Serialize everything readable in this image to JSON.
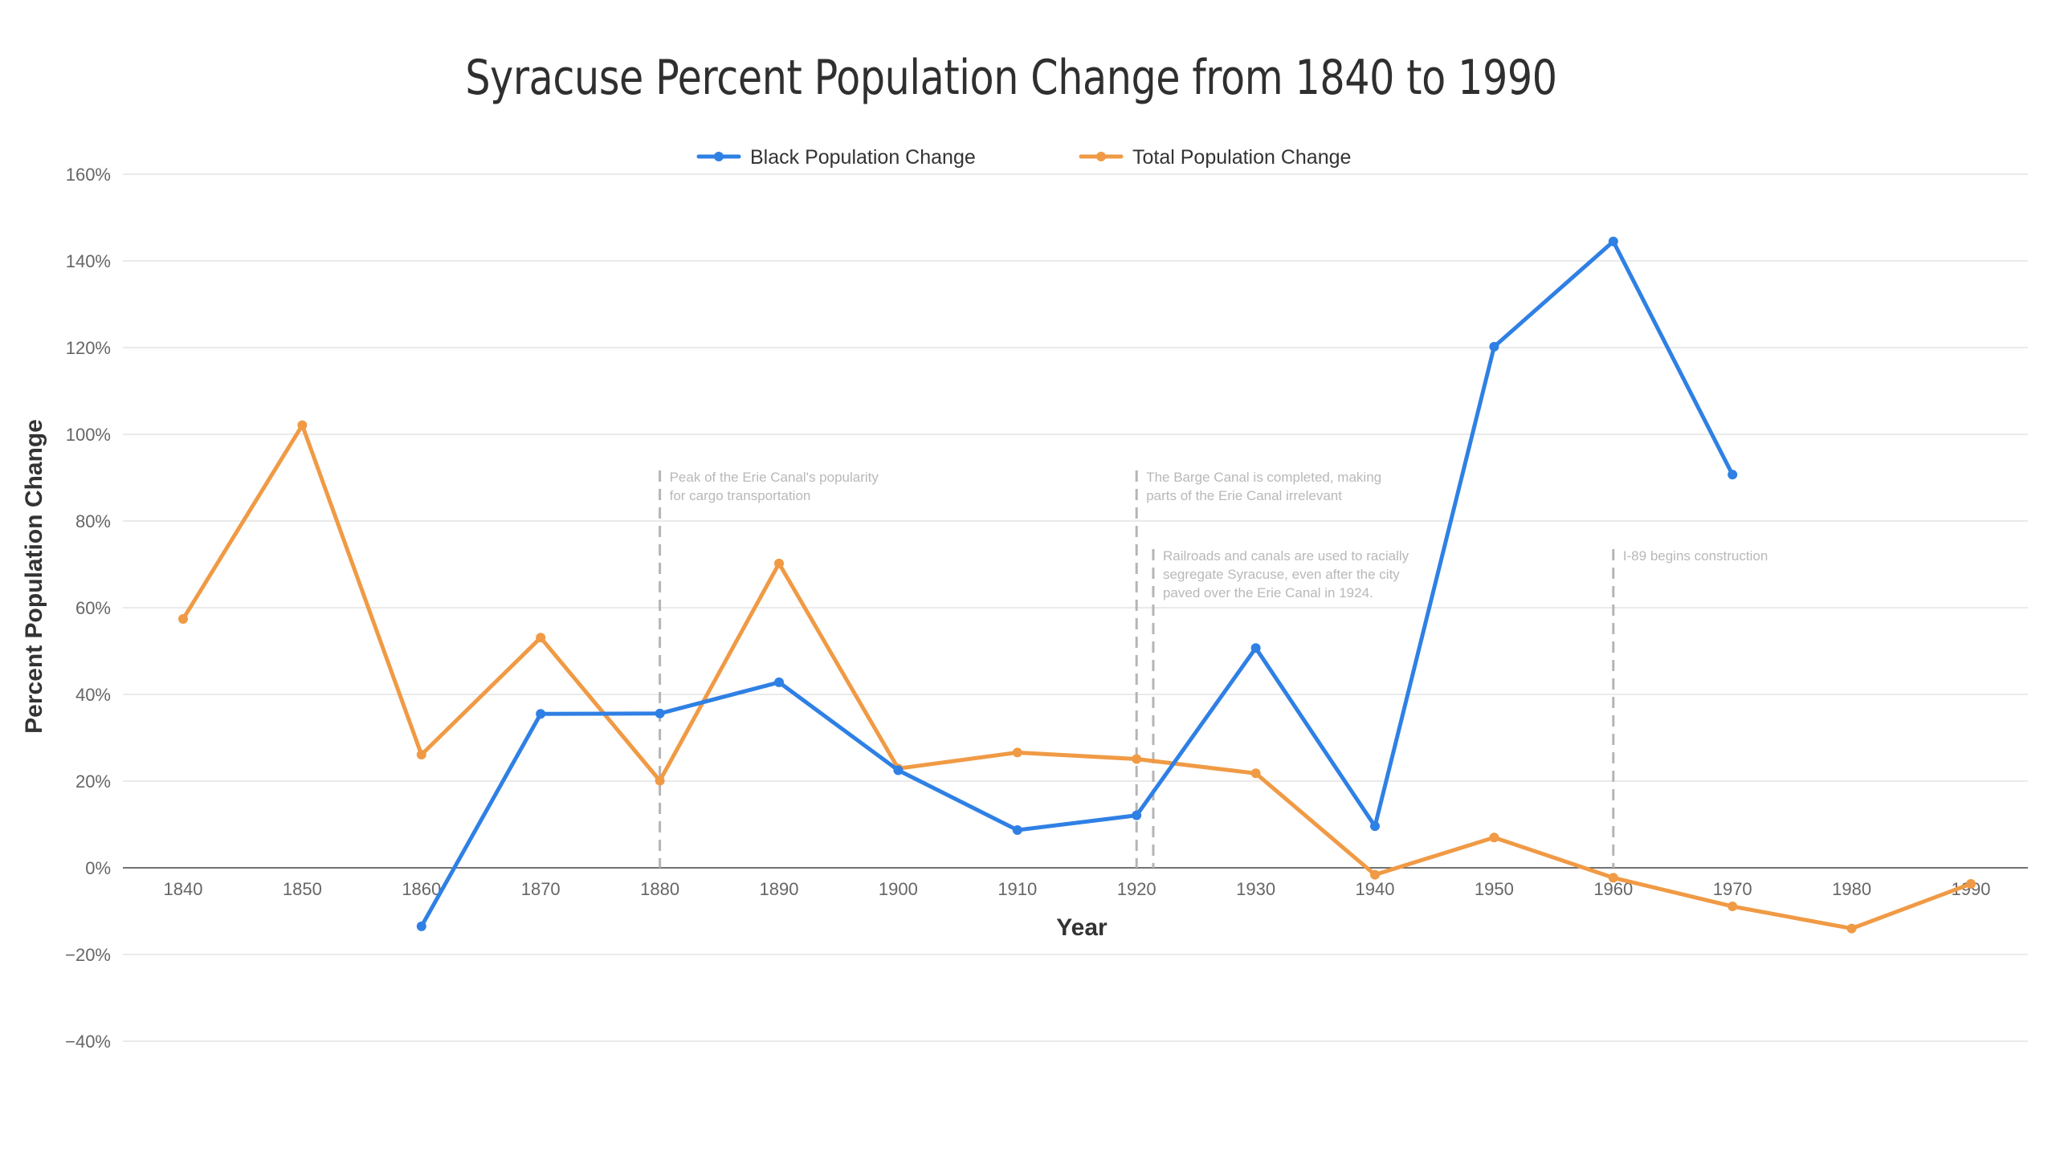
{
  "chart_data": {
    "type": "line",
    "title": "Syracuse Percent Population Change from 1840 to 1990",
    "xlabel": "Year",
    "ylabel": "Percent Population Change",
    "x": [
      1840,
      1850,
      1860,
      1870,
      1880,
      1890,
      1900,
      1910,
      1920,
      1930,
      1940,
      1950,
      1960,
      1970,
      1980,
      1990
    ],
    "xlim": [
      1840,
      1990
    ],
    "ylim": [
      -40,
      160
    ],
    "yticks": [
      160,
      140,
      120,
      100,
      80,
      60,
      40,
      20,
      0,
      -20,
      -40
    ],
    "ytick_labels": [
      "160%",
      "140%",
      "120%",
      "100%",
      "80%",
      "60%",
      "40%",
      "20%",
      "0%",
      "−20%",
      "−40%"
    ],
    "xtick_labels": [
      "1840",
      "1850",
      "1860",
      "1870",
      "1880",
      "1890",
      "1900",
      "1910",
      "1920",
      "1930",
      "1940",
      "1950",
      "1960",
      "1970",
      "1980",
      "1990"
    ],
    "grid": true,
    "legend_position": "top-center",
    "series": [
      {
        "name": "Black Population Change",
        "color": "#2f80e4",
        "values": [
          null,
          null,
          -13.5,
          35.5,
          35.6,
          42.8,
          22.5,
          8.7,
          12.1,
          50.7,
          9.6,
          120.2,
          144.5,
          90.7,
          null,
          null
        ]
      },
      {
        "name": "Total Population Change",
        "color": "#f09a45",
        "values": [
          57.4,
          102.1,
          26.1,
          53.1,
          20.1,
          70.2,
          22.9,
          26.6,
          25.1,
          21.8,
          -1.6,
          7.0,
          -2.3,
          -8.9,
          -14.0,
          -3.7
        ]
      }
    ],
    "annotations": [
      {
        "x": 1880,
        "lines": [
          "Peak of the Erie Canal's popularity",
          "for cargo transportation"
        ]
      },
      {
        "x": 1920,
        "lines": [
          "The Barge Canal is completed, making",
          "parts of the Erie Canal irrelevant"
        ]
      },
      {
        "x": 1921.4,
        "lines": [
          "Railroads and canals are used to racially",
          "segregate Syracuse, even after the city",
          "paved over the Erie Canal in 1924."
        ]
      },
      {
        "x": 1960,
        "lines": [
          "I-89 begins construction"
        ]
      }
    ]
  }
}
